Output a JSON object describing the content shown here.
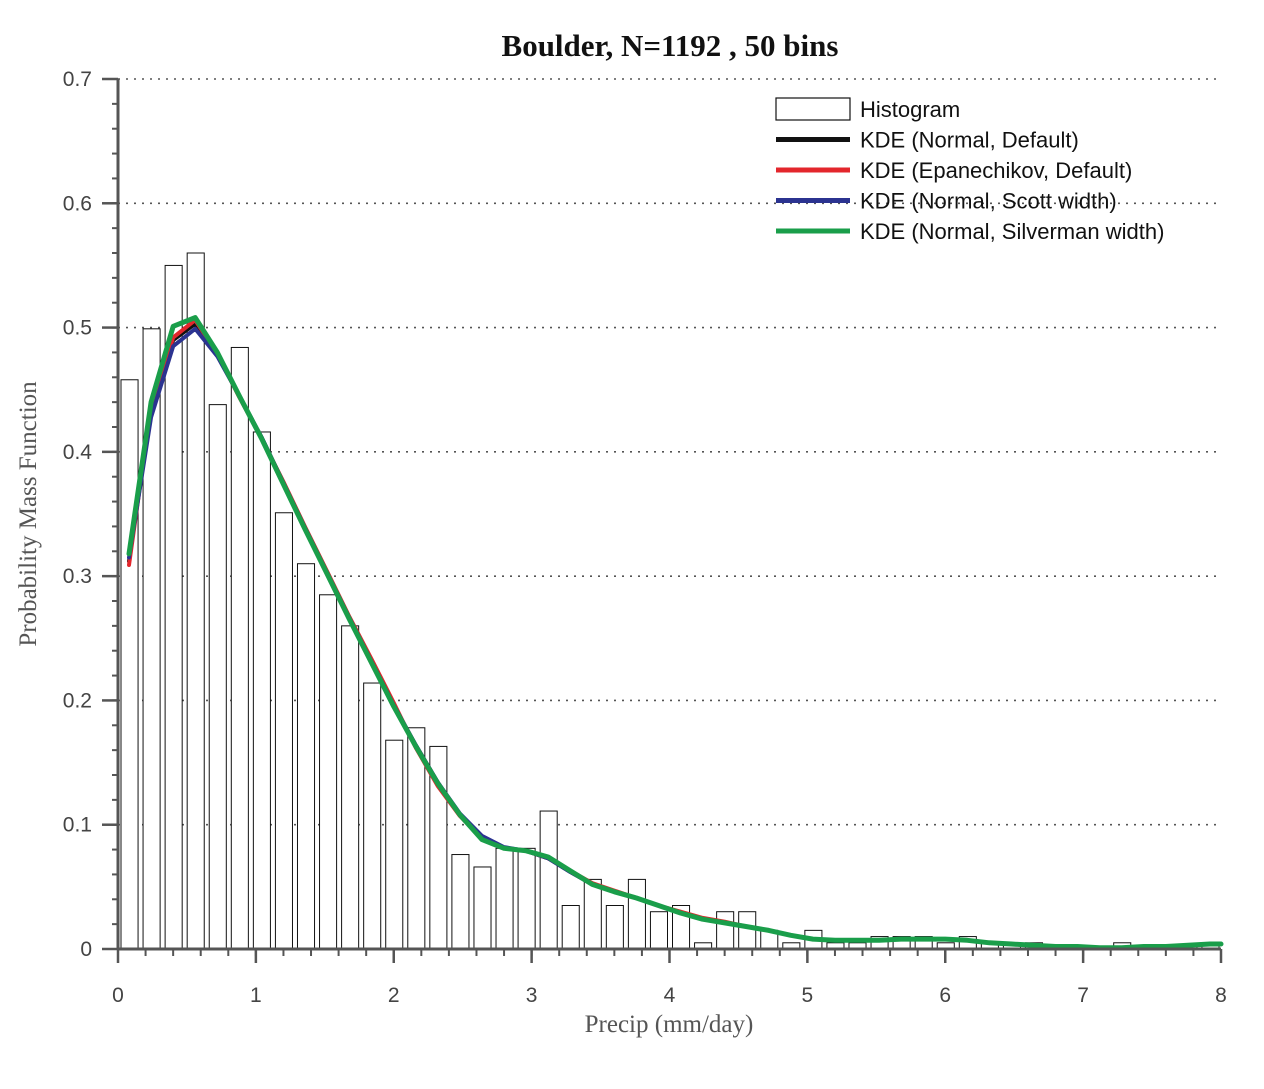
{
  "chart_data": {
    "type": "bar",
    "title": "Boulder, N=1192 , 50 bins",
    "xlabel": "Precip (mm/day)",
    "ylabel": "Probability Mass Function",
    "xlim": [
      0,
      8
    ],
    "ylim": [
      0,
      0.7
    ],
    "x_ticks": [
      "0",
      "1",
      "2",
      "3",
      "4",
      "5",
      "6",
      "7",
      "8"
    ],
    "y_ticks": [
      "0",
      "0.1",
      "0.2",
      "0.3",
      "0.4",
      "0.5",
      "0.6",
      "0.7"
    ],
    "grid": "horizontal dotted",
    "legend_position": "top-right",
    "histogram": {
      "name": "Histogram",
      "bin_width": 0.16,
      "bin_starts": [
        0.0,
        0.16,
        0.32,
        0.48,
        0.64,
        0.8,
        0.96,
        1.12,
        1.28,
        1.44,
        1.6,
        1.76,
        1.92,
        2.08,
        2.24,
        2.4,
        2.56,
        2.72,
        2.88,
        3.04,
        3.2,
        3.36,
        3.52,
        3.68,
        3.84,
        4.0,
        4.16,
        4.32,
        4.48,
        4.64,
        4.8,
        4.96,
        5.12,
        5.28,
        5.44,
        5.6,
        5.76,
        5.92,
        6.08,
        6.24,
        6.4,
        6.56,
        6.72,
        6.88,
        7.04,
        7.2,
        7.36,
        7.52,
        7.68,
        7.84
      ],
      "values": [
        0.458,
        0.499,
        0.55,
        0.56,
        0.438,
        0.484,
        0.416,
        0.351,
        0.31,
        0.285,
        0.26,
        0.214,
        0.168,
        0.178,
        0.163,
        0.076,
        0.066,
        0.081,
        0.081,
        0.111,
        0.035,
        0.056,
        0.035,
        0.056,
        0.03,
        0.035,
        0.005,
        0.03,
        0.03,
        0.015,
        0.005,
        0.015,
        0.005,
        0.005,
        0.01,
        0.01,
        0.01,
        0.005,
        0.01,
        0.005,
        0.005,
        0.005,
        0.003,
        0.002,
        0.002,
        0.005,
        0.002,
        0.002,
        0.003,
        0.003
      ],
      "color": "#ffffff",
      "edge_color": "#111111"
    },
    "series": [
      {
        "name": "KDE (Normal, Default)",
        "color": "#111111",
        "x": [
          0.08,
          0.24,
          0.4,
          0.56,
          0.72,
          0.88,
          1.04,
          1.2,
          1.36,
          1.52,
          1.68,
          1.84,
          2.0,
          2.16,
          2.32,
          2.48,
          2.64,
          2.8,
          2.96,
          3.12,
          3.28,
          3.44,
          3.6,
          3.76,
          3.92,
          4.08,
          4.24,
          4.4,
          4.56,
          4.72,
          4.88,
          5.04,
          5.2,
          5.36,
          5.52,
          5.68,
          5.84,
          6.0,
          6.16,
          6.32,
          6.48,
          6.64,
          6.8,
          6.96,
          7.12,
          7.28,
          7.44,
          7.6,
          7.76,
          7.92,
          8.0
        ],
        "y": [
          0.312,
          0.435,
          0.49,
          0.503,
          0.478,
          0.445,
          0.412,
          0.375,
          0.338,
          0.302,
          0.266,
          0.23,
          0.196,
          0.164,
          0.134,
          0.108,
          0.09,
          0.081,
          0.079,
          0.073,
          0.062,
          0.052,
          0.046,
          0.041,
          0.035,
          0.029,
          0.024,
          0.021,
          0.018,
          0.015,
          0.011,
          0.008,
          0.007,
          0.007,
          0.007,
          0.008,
          0.008,
          0.008,
          0.007,
          0.005,
          0.004,
          0.003,
          0.002,
          0.002,
          0.001,
          0.001,
          0.002,
          0.002,
          0.003,
          0.004,
          0.004
        ]
      },
      {
        "name": "KDE (Epanechikov, Default)",
        "color": "#e3262c",
        "x": [
          0.08,
          0.24,
          0.4,
          0.56,
          0.72,
          0.88,
          1.04,
          1.2,
          1.36,
          1.52,
          1.68,
          1.84,
          2.0,
          2.16,
          2.32,
          2.48,
          2.64,
          2.8,
          2.96,
          3.12,
          3.28,
          3.44,
          3.6,
          3.76,
          3.92,
          4.08,
          4.24,
          4.4,
          4.56,
          4.72,
          4.88,
          5.04,
          5.2,
          5.36,
          5.52,
          5.68,
          5.84,
          6.0,
          6.16,
          6.32,
          6.48,
          6.64,
          6.8,
          6.96,
          7.12,
          7.28,
          7.44,
          7.6,
          7.76,
          7.92,
          8.0
        ],
        "y": [
          0.309,
          0.436,
          0.492,
          0.506,
          0.479,
          0.444,
          0.411,
          0.376,
          0.339,
          0.303,
          0.267,
          0.233,
          0.198,
          0.162,
          0.131,
          0.107,
          0.089,
          0.081,
          0.079,
          0.073,
          0.063,
          0.053,
          0.047,
          0.041,
          0.035,
          0.03,
          0.025,
          0.022,
          0.018,
          0.015,
          0.011,
          0.008,
          0.007,
          0.007,
          0.007,
          0.008,
          0.008,
          0.008,
          0.007,
          0.005,
          0.004,
          0.003,
          0.002,
          0.002,
          0.001,
          0.001,
          0.002,
          0.002,
          0.003,
          0.004,
          0.004
        ]
      },
      {
        "name": "KDE (Normal, Scott width)",
        "color": "#2b3390",
        "x": [
          0.08,
          0.24,
          0.4,
          0.56,
          0.72,
          0.88,
          1.04,
          1.2,
          1.36,
          1.52,
          1.68,
          1.84,
          2.0,
          2.16,
          2.32,
          2.48,
          2.64,
          2.8,
          2.96,
          3.12,
          3.28,
          3.44,
          3.6,
          3.76,
          3.92,
          4.08,
          4.24,
          4.4,
          4.56,
          4.72,
          4.88,
          5.04,
          5.2,
          5.36,
          5.52,
          5.68,
          5.84,
          6.0,
          6.16,
          6.32,
          6.48,
          6.64,
          6.8,
          6.96,
          7.12,
          7.28,
          7.44,
          7.6,
          7.76,
          7.92,
          8.0
        ],
        "y": [
          0.315,
          0.428,
          0.485,
          0.499,
          0.477,
          0.445,
          0.412,
          0.375,
          0.338,
          0.302,
          0.266,
          0.231,
          0.196,
          0.164,
          0.134,
          0.109,
          0.091,
          0.082,
          0.079,
          0.073,
          0.062,
          0.052,
          0.046,
          0.041,
          0.035,
          0.029,
          0.024,
          0.021,
          0.018,
          0.015,
          0.011,
          0.008,
          0.007,
          0.007,
          0.007,
          0.008,
          0.008,
          0.008,
          0.007,
          0.005,
          0.004,
          0.003,
          0.002,
          0.002,
          0.001,
          0.001,
          0.002,
          0.002,
          0.003,
          0.004,
          0.004
        ]
      },
      {
        "name": "KDE (Normal, Silverman width)",
        "color": "#1a9e4a",
        "x": [
          0.08,
          0.24,
          0.4,
          0.56,
          0.72,
          0.88,
          1.04,
          1.2,
          1.36,
          1.52,
          1.68,
          1.84,
          2.0,
          2.16,
          2.32,
          2.48,
          2.64,
          2.8,
          2.96,
          3.12,
          3.28,
          3.44,
          3.6,
          3.76,
          3.92,
          4.08,
          4.24,
          4.4,
          4.56,
          4.72,
          4.88,
          5.04,
          5.2,
          5.36,
          5.52,
          5.68,
          5.84,
          6.0,
          6.16,
          6.32,
          6.48,
          6.64,
          6.8,
          6.96,
          7.12,
          7.28,
          7.44,
          7.6,
          7.76,
          7.92,
          8.0
        ],
        "y": [
          0.318,
          0.44,
          0.501,
          0.508,
          0.48,
          0.445,
          0.411,
          0.374,
          0.337,
          0.301,
          0.265,
          0.23,
          0.195,
          0.163,
          0.133,
          0.108,
          0.088,
          0.081,
          0.079,
          0.074,
          0.063,
          0.052,
          0.046,
          0.041,
          0.035,
          0.029,
          0.024,
          0.021,
          0.018,
          0.015,
          0.011,
          0.008,
          0.007,
          0.007,
          0.007,
          0.008,
          0.008,
          0.008,
          0.007,
          0.005,
          0.004,
          0.003,
          0.002,
          0.002,
          0.001,
          0.001,
          0.002,
          0.002,
          0.003,
          0.004,
          0.004
        ]
      }
    ]
  }
}
